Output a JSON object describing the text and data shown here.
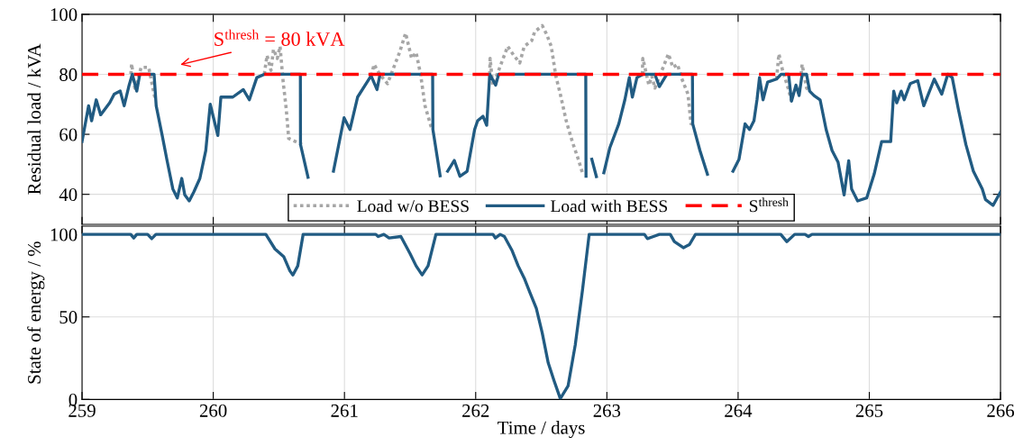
{
  "chart_data": [
    {
      "type": "line",
      "ylabel": "Residual load / kVA",
      "xlim": [
        259,
        266
      ],
      "xticks": [
        259,
        260,
        261,
        262,
        263,
        264,
        265,
        266
      ],
      "ylim": [
        30,
        100
      ],
      "yticks": [
        40,
        60,
        80,
        100
      ],
      "tick_labels": "y",
      "grid": true,
      "legend": "bottom",
      "series": [
        {
          "name": "Load w/o BESS",
          "color": "#a6a6a6",
          "line_style": "dotted",
          "x": [
            259.372,
            259.378,
            259.405,
            259.45,
            259.508,
            259.558,
            259.8,
            260.389,
            260.41,
            260.44,
            260.459,
            260.488,
            260.509,
            260.533,
            260.556,
            260.575,
            260.676,
            260.9,
            261.203,
            261.226,
            261.268,
            261.328,
            261.42,
            261.466,
            261.512,
            261.546,
            261.58,
            261.614,
            261.66,
            261.674,
            261.9,
            262.107,
            262.11,
            262.13,
            262.175,
            262.244,
            262.29,
            262.336,
            262.37,
            262.427,
            262.45,
            262.508,
            262.542,
            262.576,
            262.611,
            262.645,
            262.69,
            262.736,
            262.782,
            262.817,
            263.0,
            263.27,
            263.274,
            263.32,
            263.343,
            263.366,
            263.469,
            263.503,
            263.538,
            263.572,
            263.618,
            263.641,
            263.654,
            264.0,
            264.293,
            264.311,
            264.339,
            264.385,
            264.407,
            264.45,
            264.48,
            264.488,
            264.522,
            264.545
          ],
          "values": [
            80,
            83.5,
            74.4,
            82.3,
            82.3,
            71.5,
            null,
            80,
            86.3,
            81.3,
            88.3,
            85.3,
            89.3,
            77.4,
            68.5,
            58.6,
            56.6,
            null,
            79.5,
            83.3,
            80,
            76.9,
            87.3,
            93.7,
            85.3,
            87.3,
            80,
            69.5,
            62.6,
            61.6,
            null,
            80,
            85.3,
            76.4,
            81.3,
            89.3,
            86.3,
            83.8,
            89.3,
            91.2,
            94.2,
            96.2,
            93.2,
            89.3,
            79.4,
            73.4,
            64.5,
            57.6,
            51.7,
            46.7,
            null,
            80,
            85.3,
            76.4,
            79.4,
            75.4,
            86.8,
            82.3,
            83.3,
            78.4,
            73.4,
            63.5,
            63.5,
            null,
            78.4,
            86.8,
            81.3,
            74.9,
            71,
            null,
            80,
            83.3,
            75.4,
            74.4
          ]
        },
        {
          "name": "Load with BESS",
          "color": "#215b82",
          "line_style": "solid",
          "x": [
            259.0,
            259.05,
            259.073,
            259.108,
            259.142,
            259.211,
            259.245,
            259.291,
            259.321,
            259.359,
            259.383,
            259.417,
            259.44,
            259.549,
            259.565,
            259.611,
            259.646,
            259.692,
            259.726,
            259.76,
            259.783,
            259.817,
            259.852,
            259.898,
            259.943,
            259.977,
            260.035,
            260.058,
            260.149,
            260.229,
            260.275,
            260.332,
            260.389,
            260.664,
            260.665,
            260.722,
            260.8,
            260.916,
            260.997,
            261.042,
            261.1,
            261.203,
            261.248,
            261.271,
            261.672,
            261.674,
            261.729,
            261.76,
            261.786,
            261.837,
            261.88,
            261.935,
            261.992,
            262.015,
            262.056,
            262.084,
            262.107,
            262.152,
            262.175,
            262.839,
            262.841,
            262.86,
            262.885,
            262.92,
            262.95,
            262.977,
            263.023,
            263.091,
            263.137,
            263.171,
            263.194,
            263.229,
            263.274,
            263.366,
            263.4,
            263.457,
            263.652,
            263.654,
            263.709,
            263.766,
            263.85,
            263.961,
            264.007,
            264.053,
            264.087,
            264.121,
            264.144,
            264.163,
            264.19,
            264.225,
            264.293,
            264.328,
            264.385,
            264.407,
            264.441,
            264.465,
            264.488,
            264.522,
            264.545,
            264.579,
            264.625,
            264.671,
            264.716,
            264.762,
            264.808,
            264.843,
            264.865,
            264.911,
            264.98,
            265.037,
            265.094,
            265.163,
            265.186,
            265.209,
            265.243,
            265.266,
            265.312,
            265.369,
            265.415,
            265.495,
            265.552,
            265.598,
            265.632,
            265.678,
            265.736,
            265.793,
            265.861,
            265.885,
            265.943,
            266.0
          ],
          "values": [
            57.6,
            69.5,
            64.5,
            71.5,
            66.5,
            70.5,
            73.4,
            74.4,
            69.5,
            76.4,
            80,
            74.4,
            80,
            80,
            69.5,
            59.6,
            51.7,
            41.8,
            38.8,
            45.3,
            39.8,
            37.8,
            40.8,
            45.3,
            54.6,
            70,
            59.6,
            72.4,
            72.4,
            74.9,
            71.5,
            78.9,
            80,
            80,
            56.6,
            45.7,
            null,
            47.7,
            65.5,
            61.6,
            72.4,
            79.5,
            74.9,
            80,
            80,
            61.6,
            46.2,
            null,
            47.7,
            51.3,
            46,
            47.7,
            61.6,
            64.5,
            66,
            63,
            80,
            76.4,
            80,
            80,
            46,
            null,
            51.7,
            45.9,
            null,
            47.2,
            55.6,
            63.5,
            71.5,
            78.9,
            72.4,
            78.9,
            80,
            80,
            75.9,
            80,
            80,
            63.5,
            54.6,
            46.7,
            null,
            47.7,
            51.7,
            63.5,
            61.6,
            64.5,
            71.5,
            78.9,
            71.5,
            77.4,
            78.4,
            80,
            80,
            71,
            76.4,
            72.9,
            80,
            80,
            74.4,
            72.9,
            71.5,
            61.6,
            54.6,
            50.7,
            39.8,
            51.2,
            41.8,
            37.8,
            38.8,
            46.7,
            57.6,
            57.6,
            74.4,
            70.5,
            74.4,
            71.5,
            76.9,
            77.9,
            69.5,
            78.4,
            73.4,
            80,
            78.9,
            68.5,
            56.6,
            47.7,
            41.8,
            38.3,
            36.3,
            40.8
          ]
        }
      ],
      "ref_lines": [
        {
          "axis": "y",
          "value": 80,
          "label": "S$^{thresh}$",
          "color": "#ff0000",
          "line_style": "dashed"
        }
      ],
      "annotations": [
        "S$^{thresh}$ = 80 kVA"
      ]
    },
    {
      "type": "line",
      "xlabel": "Time / days",
      "ylabel": "State of energy / %",
      "xlim": [
        259,
        266
      ],
      "xticks": [
        259,
        260,
        261,
        262,
        263,
        264,
        265,
        266
      ],
      "ylim": [
        0,
        105
      ],
      "yticks": [
        0,
        50,
        100
      ],
      "grid": true,
      "series": [
        {
          "color": "#215b82",
          "line_style": "solid",
          "x": [
            259.0,
            259.371,
            259.394,
            259.417,
            259.5,
            259.531,
            259.563,
            260.401,
            260.47,
            260.538,
            260.584,
            260.607,
            260.644,
            260.685,
            261.239,
            261.257,
            261.3,
            261.34,
            261.43,
            261.5,
            261.546,
            261.592,
            261.637,
            261.697,
            262.132,
            262.15,
            262.187,
            262.219,
            262.278,
            262.324,
            262.37,
            262.416,
            262.462,
            262.507,
            262.553,
            262.599,
            262.645,
            262.704,
            262.759,
            262.814,
            262.865,
            263.286,
            263.309,
            263.355,
            263.4,
            263.483,
            263.514,
            263.583,
            263.629,
            263.675,
            264.325,
            264.371,
            264.431,
            264.51,
            264.536,
            264.563,
            266.0
          ],
          "values": [
            100,
            100,
            97.8,
            100,
            100,
            97.4,
            100,
            100,
            91.2,
            86.4,
            77.9,
            75.4,
            80.9,
            100,
            100,
            98.7,
            100,
            97.8,
            98.7,
            88.3,
            80.9,
            75.4,
            80.9,
            100,
            100,
            97.8,
            100,
            98.7,
            90.1,
            80.9,
            73.5,
            64.3,
            55.2,
            40.4,
            22.1,
            11.0,
            0.5,
            8.1,
            33.1,
            66.2,
            100,
            100,
            97.4,
            98.7,
            100,
            100,
            95.6,
            91.9,
            93.8,
            100,
            100,
            95.6,
            100,
            100,
            98.7,
            100,
            100
          ]
        }
      ]
    }
  ]
}
